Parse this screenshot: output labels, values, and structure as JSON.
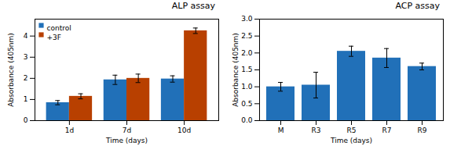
{
  "chart_data": [
    {
      "type": "bar",
      "title": "ALP assay",
      "xlabel": "Time (days)",
      "ylabel": "Absorbance (405nm)",
      "categories": [
        "1d",
        "7d",
        "10d"
      ],
      "series": [
        {
          "name": "control",
          "color": "#2170b8",
          "values": [
            0.85,
            1.93,
            1.97
          ],
          "errors": [
            0.1,
            0.22,
            0.15
          ]
        },
        {
          "name": "+3F",
          "color": "#b84000",
          "values": [
            1.15,
            2.0,
            4.25
          ],
          "errors": [
            0.12,
            0.2,
            0.13
          ]
        }
      ],
      "ylim": [
        0,
        4.8
      ],
      "yticks": [
        0,
        1,
        2,
        3,
        4
      ],
      "legend": "upper left",
      "grid": false
    },
    {
      "type": "bar",
      "title": "ACP assay",
      "xlabel": "Time (days)",
      "ylabel": "Absorbance (405nm)",
      "categories": [
        "M",
        "R3",
        "R5",
        "R7",
        "R9"
      ],
      "values": [
        1.0,
        1.05,
        2.05,
        1.85,
        1.6
      ],
      "errors": [
        0.13,
        0.38,
        0.15,
        0.28,
        0.1
      ],
      "color": "#2170b8",
      "ylim": [
        0,
        3.0
      ],
      "yticks": [
        {
          "value": 0.0,
          "label": "0.0"
        },
        0.5,
        {
          "value": 1.0,
          "label": "1.0"
        },
        1.5,
        {
          "value": 2.0,
          "label": "2.0"
        },
        2.5,
        {
          "value": 3.0,
          "label": "3.0"
        }
      ],
      "grid": false
    }
  ]
}
